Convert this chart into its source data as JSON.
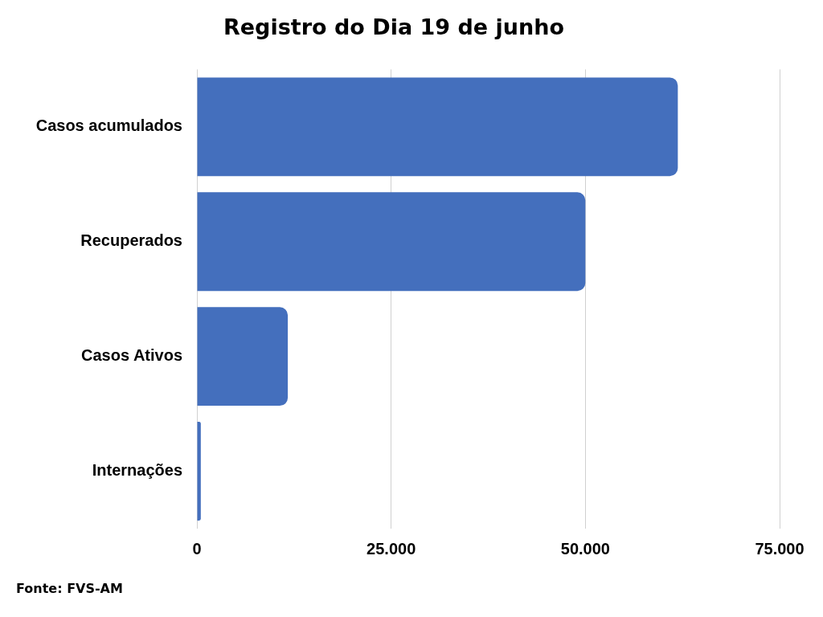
{
  "chart_data": {
    "type": "bar",
    "orientation": "horizontal",
    "title": "Registro do Dia 19 de junho",
    "categories": [
      "Casos acumulados",
      "Recuperados",
      "Casos Ativos",
      "Internações"
    ],
    "values": [
      61900,
      50000,
      11700,
      500
    ],
    "color": "#446fbd",
    "xlim": [
      0,
      75000
    ],
    "xticks": [
      0,
      {
        "value": 25000,
        "label": "25.000"
      },
      {
        "value": 50000,
        "label": "50.000"
      },
      {
        "value": 75000,
        "label": "75.000"
      }
    ],
    "grid": "x",
    "legend": false,
    "annotations": [
      "Fonte: FVS-AM"
    ]
  }
}
